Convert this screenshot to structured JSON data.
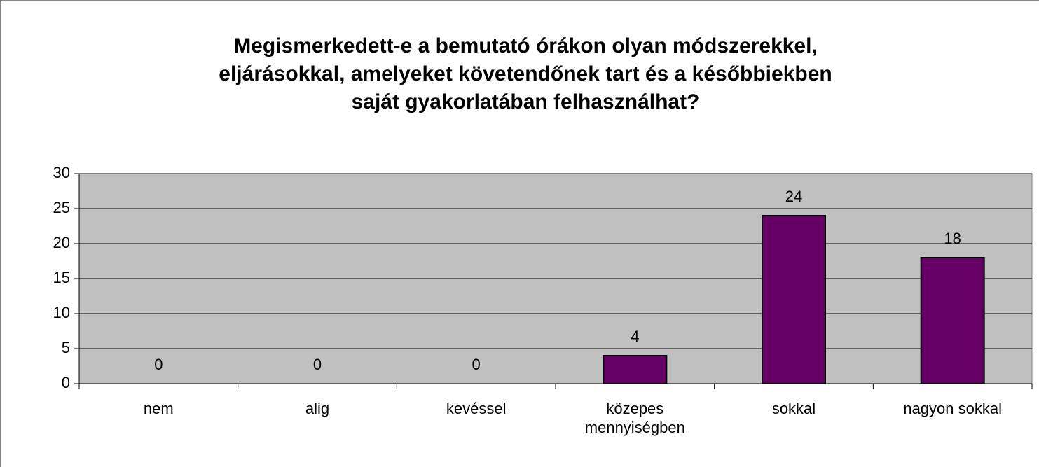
{
  "chart_data": {
    "type": "bar",
    "title": [
      "Megismerkedett-e a bemutató órákon olyan módszerekkel,",
      "eljárásokkal, amelyeket követendőnek tart és a későbbiekben",
      "saját gyakorlatában felhasználhat?"
    ],
    "categories": [
      "nem",
      "alig",
      "kevéssel",
      "közepes mennyiségben",
      "sokkal",
      "nagyon sokkal"
    ],
    "values": [
      0,
      0,
      0,
      4,
      24,
      18
    ],
    "color": "#660066",
    "ylim": [
      0,
      30
    ],
    "yticks": [
      0,
      5,
      10,
      15,
      20,
      25,
      30
    ],
    "grid": true
  }
}
